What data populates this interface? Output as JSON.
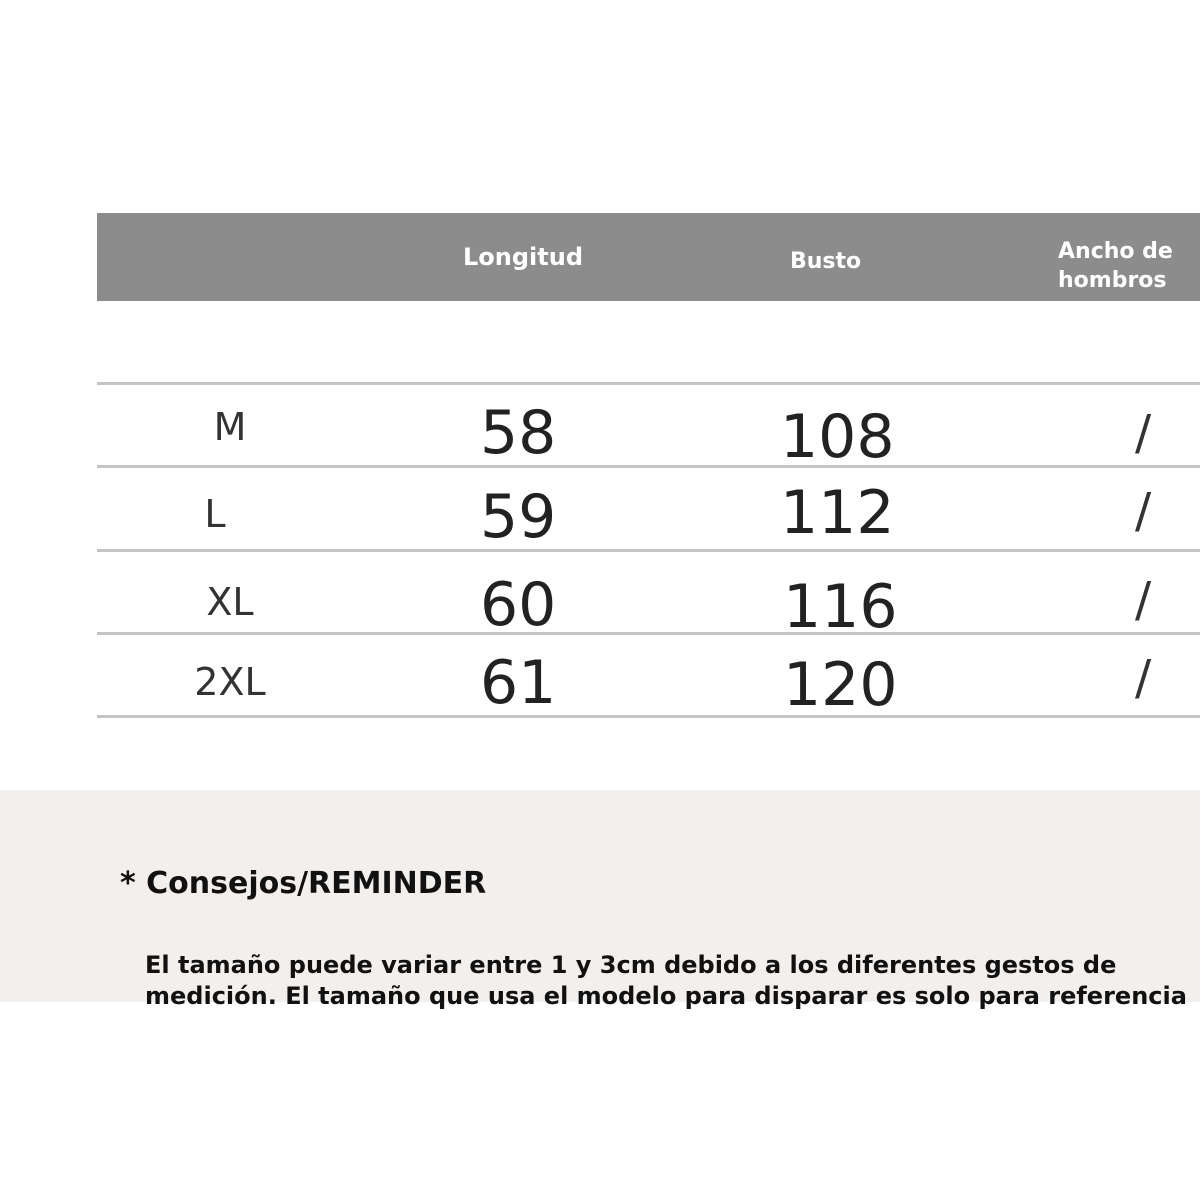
{
  "table": {
    "headers": [
      "",
      "Longitud",
      "Busto",
      "Ancho de hombros"
    ],
    "header_color": "#8c8c8c",
    "rows": [
      {
        "size": "M",
        "longitud": "58",
        "busto": "108",
        "hombros": "/"
      },
      {
        "size": "L",
        "longitud": "59",
        "busto": "112",
        "hombros": "/"
      },
      {
        "size": "XL",
        "longitud": "60",
        "busto": "116",
        "hombros": "/"
      },
      {
        "size": "2XL",
        "longitud": "61",
        "busto": "120",
        "hombros": "/"
      }
    ]
  },
  "reminder": {
    "title": "* Consejos/REMINDER",
    "line1": "El tamaño puede variar entre 1 y 3cm debido a los diferentes gestos de",
    "line2": "medición. El tamaño que usa el modelo para disparar es solo para referencia"
  }
}
